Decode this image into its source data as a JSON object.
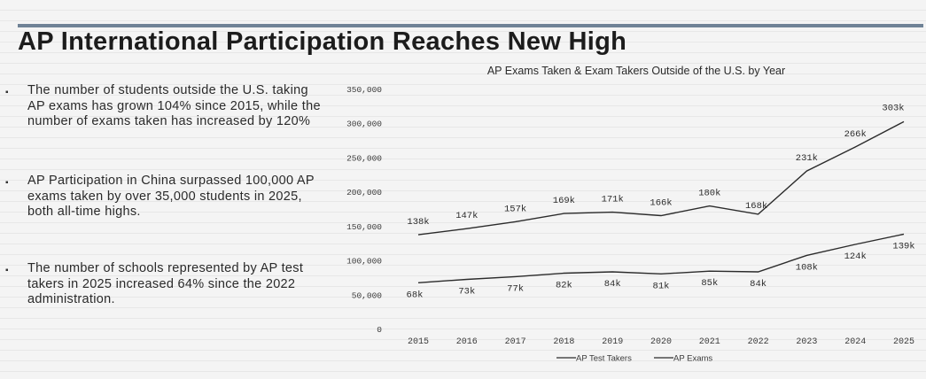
{
  "page": {
    "title": "AP International Participation Reaches New High",
    "bullets": [
      {
        "text": "The number of students outside the U.S. taking AP exams has grown 104% since 2015, while the number of exams taken has increased by 120%"
      },
      {
        "text": "AP Participation in China surpassed 100,000 AP exams taken by over 35,000 students in 2025, both all-time highs."
      },
      {
        "text": "The number of schools represented by AP test takers in 2025 increased 64% since the 2022 administration."
      }
    ]
  },
  "chart_data": {
    "type": "line",
    "title": "AP Exams Taken & Exam Takers Outside of the U.S. by Year",
    "xlabel": "",
    "ylabel": "",
    "categories": [
      "2015",
      "2016",
      "2017",
      "2018",
      "2019",
      "2020",
      "2021",
      "2022",
      "2023",
      "2024",
      "2025"
    ],
    "ylim": [
      0,
      350000
    ],
    "yticks": [
      0,
      50000,
      100000,
      150000,
      200000,
      250000,
      300000,
      350000
    ],
    "ytick_labels": [
      "0",
      "50,000",
      "100,000",
      "150,000",
      "200,000",
      "250,000",
      "300,000",
      "350,000"
    ],
    "grid": false,
    "legend": "bottom",
    "series": [
      {
        "name": "AP Test Takers",
        "values": [
          68000,
          73000,
          77000,
          82000,
          84000,
          81000,
          85000,
          84000,
          108000,
          124000,
          139000
        ],
        "labels": [
          "68k",
          "73k",
          "77k",
          "82k",
          "84k",
          "81k",
          "85k",
          "84k",
          "108k",
          "124k",
          "139k"
        ],
        "color": "#2b2b2b"
      },
      {
        "name": "AP Exams",
        "values": [
          138000,
          147000,
          157000,
          169000,
          171000,
          166000,
          180000,
          168000,
          231000,
          266000,
          303000
        ],
        "labels": [
          "138k",
          "147k",
          "157k",
          "169k",
          "171k",
          "166k",
          "180k",
          "168k",
          "231k",
          "266k",
          "303k"
        ],
        "color": "#2b2b2b"
      }
    ]
  }
}
